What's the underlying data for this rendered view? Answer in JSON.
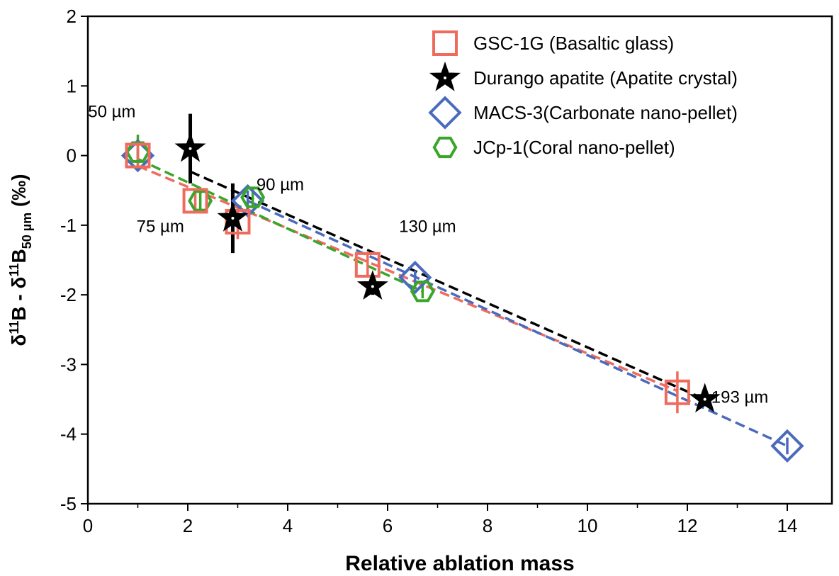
{
  "chart_data": {
    "type": "scatter",
    "title": "",
    "xlabel": "Relative ablation mass",
    "ylabel": {
      "p1": "δ",
      "s1": "11",
      "p2": "B - δ",
      "s2": "11",
      "p3": "B",
      "s3": "50 µm",
      "p4": " (‰)"
    },
    "xlim": [
      0,
      14.6
    ],
    "ylim": [
      -5,
      2
    ],
    "xticks": [
      "0",
      "2",
      "4",
      "6",
      "8",
      "10",
      "12",
      "14"
    ],
    "yticks": [
      "2",
      "1",
      "0",
      "-1",
      "-2",
      "-3",
      "-4",
      "-5"
    ],
    "legend_position": "top-right",
    "series": [
      {
        "name": "GSC-1G (Basaltic glass)",
        "marker": "square",
        "color": "#ee6b5e",
        "points": [
          {
            "x": 1.0,
            "y": 0.0,
            "err": 0.15
          },
          {
            "x": 2.15,
            "y": -0.65,
            "err": 0.15
          },
          {
            "x": 3.0,
            "y": -0.95,
            "err": 0.25
          },
          {
            "x": 5.6,
            "y": -1.57,
            "err": 0.15
          },
          {
            "x": 11.8,
            "y": -3.4,
            "err": 0.3
          }
        ],
        "fit": [
          [
            1.0,
            -0.15
          ],
          [
            11.8,
            -3.38
          ]
        ]
      },
      {
        "name": "Durango apatite (Apatite crystal)",
        "marker": "star",
        "color": "#000000",
        "points": [
          {
            "x": 2.05,
            "y": 0.1,
            "err": 0.5
          },
          {
            "x": 2.9,
            "y": -0.9,
            "err": 0.5
          },
          {
            "x": 5.7,
            "y": -1.88,
            "err": 0.12
          },
          {
            "x": 12.35,
            "y": -3.5,
            "err": 0.1
          }
        ],
        "fit": [
          [
            2.05,
            -0.23
          ],
          [
            12.35,
            -3.5
          ]
        ]
      },
      {
        "name": "MACS-3(Carbonate nano-pellet)",
        "marker": "diamond",
        "color": "#4a6bbd",
        "points": [
          {
            "x": 1.0,
            "y": 0.0,
            "err": 0.1
          },
          {
            "x": 3.2,
            "y": -0.65,
            "err": 0.15
          },
          {
            "x": 6.55,
            "y": -1.75,
            "err": 0.1
          },
          {
            "x": 14.0,
            "y": -4.17,
            "err": 0.12
          }
        ],
        "fit": [
          [
            3.2,
            -0.65
          ],
          [
            14.0,
            -4.17
          ]
        ]
      },
      {
        "name": "JCp-1(Coral nano-pellet)",
        "marker": "hexagon",
        "color": "#3aa52a",
        "points": [
          {
            "x": 1.0,
            "y": 0.05,
            "err": 0.25
          },
          {
            "x": 2.25,
            "y": -0.65,
            "err": 0.15
          },
          {
            "x": 3.3,
            "y": -0.6,
            "err": 0.15
          },
          {
            "x": 6.7,
            "y": -1.95,
            "err": 0.1
          }
        ],
        "fit": [
          [
            1.0,
            -0.05
          ],
          [
            6.7,
            -1.95
          ]
        ]
      }
    ],
    "annotations": [
      {
        "text": "50 µm",
        "x": 0.48,
        "y": 0.55
      },
      {
        "text": "75 µm",
        "x": 1.45,
        "y": -1.1
      },
      {
        "text": "90 µm",
        "x": 3.85,
        "y": -0.5
      },
      {
        "text": "130 µm",
        "x": 6.8,
        "y": -1.1
      },
      {
        "text": "193 µm",
        "x": 13.05,
        "y": -3.55
      }
    ]
  }
}
